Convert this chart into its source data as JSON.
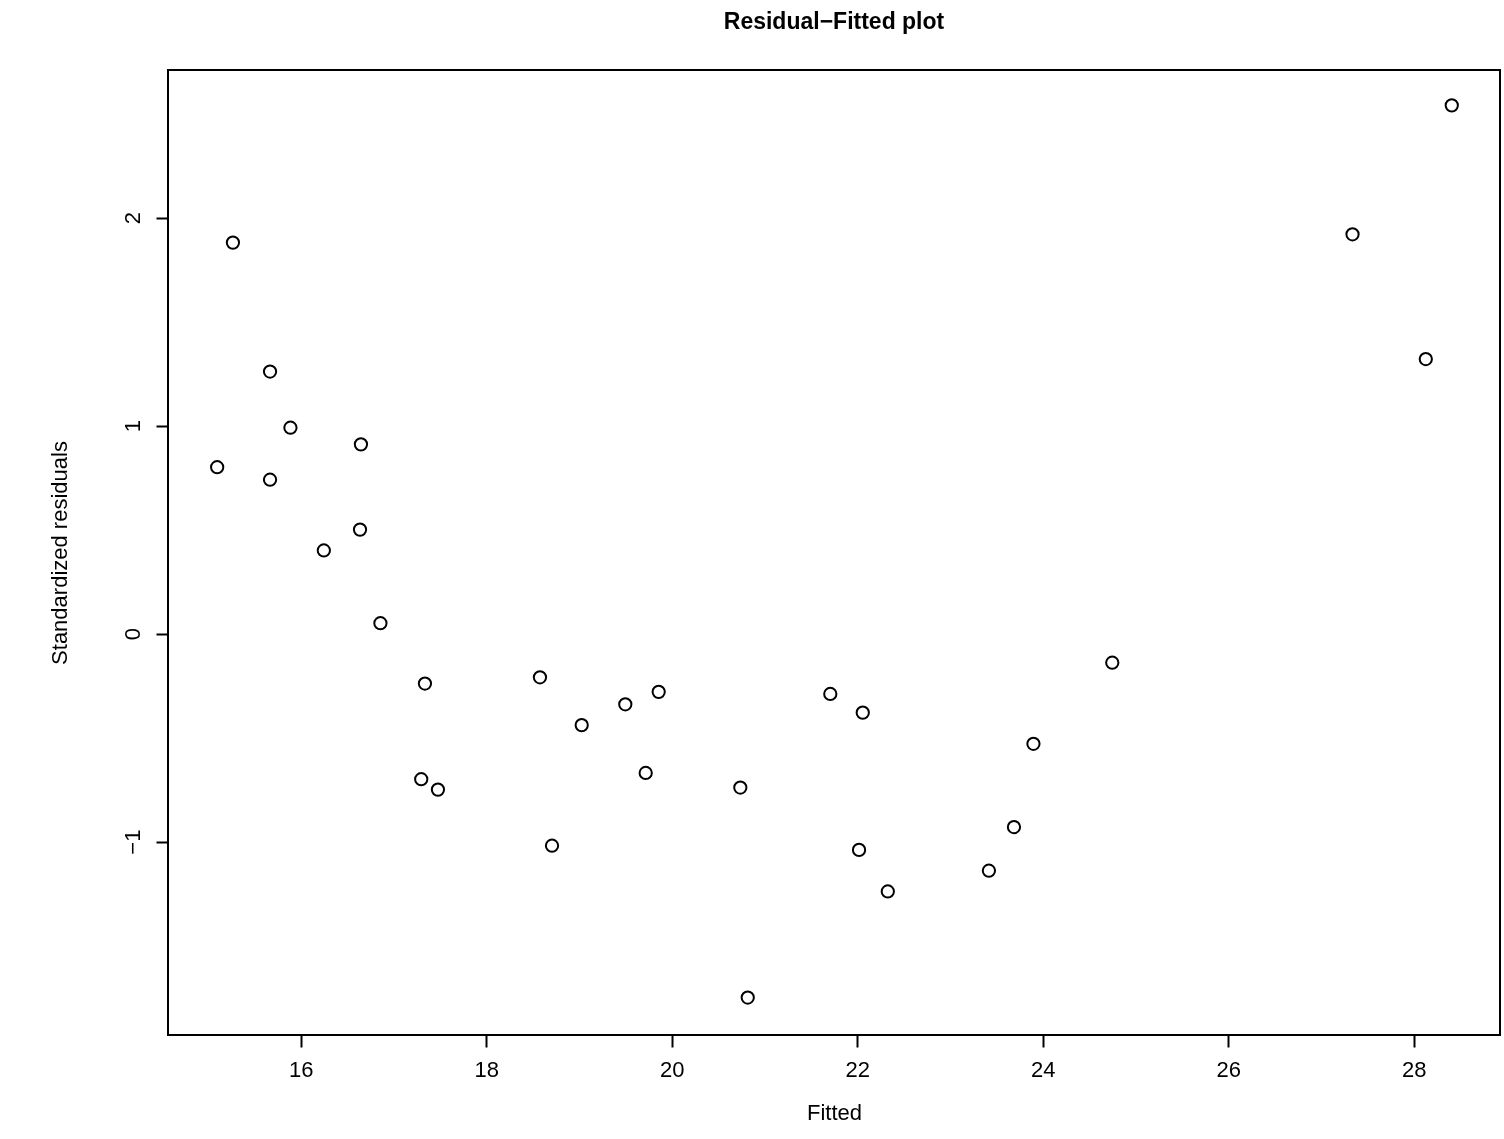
{
  "chart_data": {
    "type": "scatter",
    "title": "Residual−Fitted plot",
    "xlabel": "Fitted",
    "ylabel": "Standardized residuals",
    "x": [
      15.1,
      15.27,
      15.67,
      15.89,
      15.67,
      16.65,
      16.25,
      16.64,
      16.86,
      17.34,
      17.3,
      17.48,
      18.58,
      18.71,
      19.03,
      19.5,
      19.86,
      19.72,
      20.74,
      20.82,
      21.71,
      22.06,
      22.02,
      22.33,
      23.42,
      23.69,
      23.9,
      24.75,
      27.34,
      28.13,
      28.41
    ],
    "values": [
      0.8,
      1.88,
      1.26,
      0.99,
      0.74,
      0.91,
      0.4,
      0.5,
      0.05,
      -0.24,
      -0.7,
      -0.75,
      -0.21,
      -1.02,
      -0.44,
      -0.34,
      -0.28,
      -0.67,
      -0.74,
      -1.75,
      -0.29,
      -0.38,
      -1.04,
      -1.24,
      -1.14,
      -0.93,
      -0.53,
      -0.14,
      1.92,
      1.32,
      2.54
    ],
    "color": "#000000",
    "marker": "circle",
    "xlim": [
      14.57,
      28.93
    ],
    "ylim": [
      -1.93,
      2.71
    ],
    "xticks": [
      16,
      18,
      20,
      22,
      24,
      26,
      28
    ],
    "yticks": [
      -1,
      0,
      1,
      2
    ]
  }
}
